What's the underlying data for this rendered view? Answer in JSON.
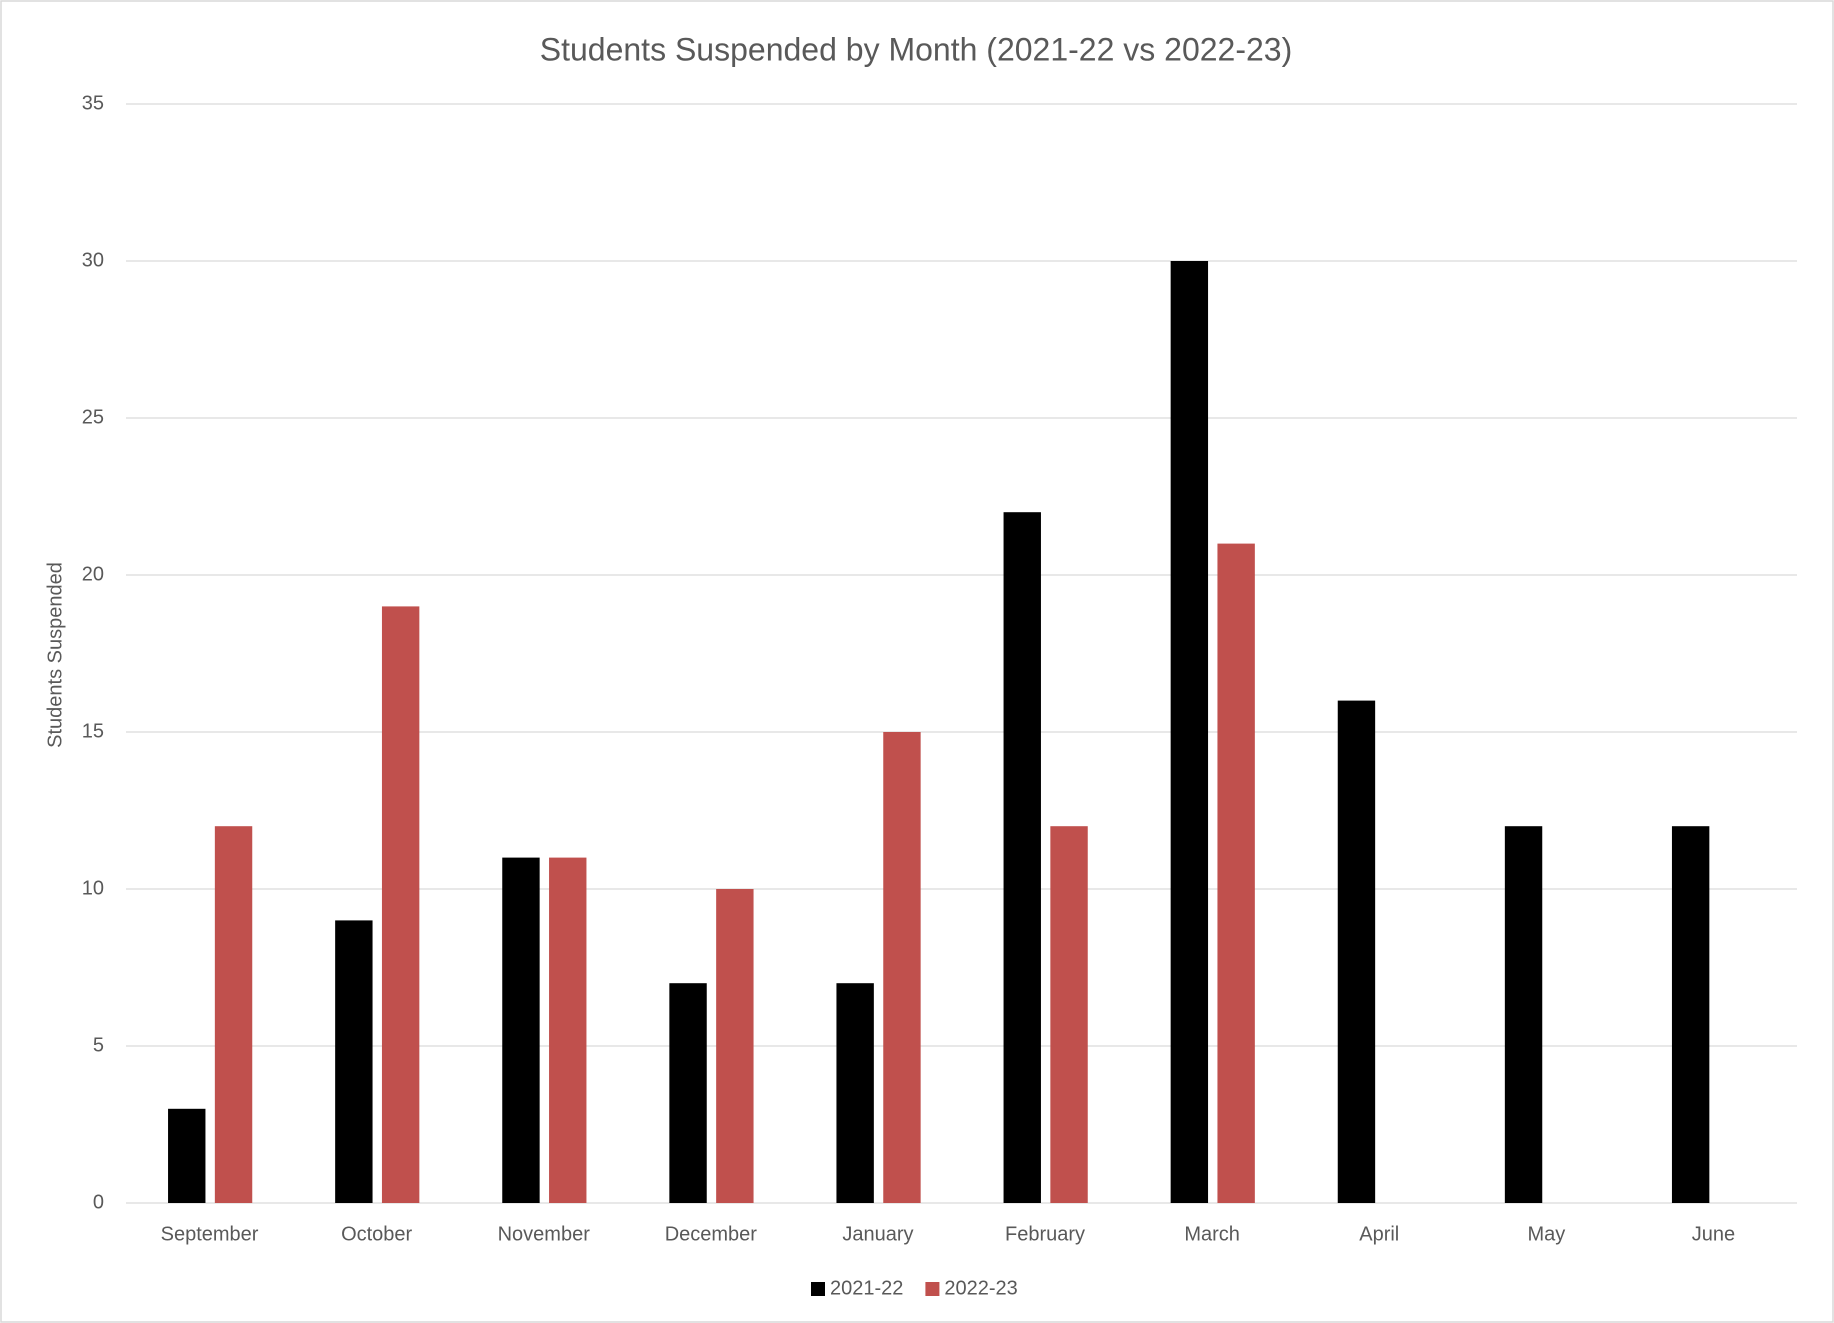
{
  "chart_data": {
    "type": "bar",
    "title": "Students Suspended by Month (2021-22 vs 2022-23)",
    "y_label": "Students Suspended",
    "categories": [
      "September",
      "October",
      "November",
      "December",
      "January",
      "February",
      "March",
      "April",
      "May",
      "June"
    ],
    "series": [
      {
        "name": "2021-22",
        "color": "#000000",
        "values": [
          3,
          9,
          11,
          7,
          7,
          22,
          30,
          16,
          12,
          12
        ]
      },
      {
        "name": "2022-23",
        "color": "#c0504d",
        "values": [
          12,
          19,
          11,
          10,
          15,
          12,
          21,
          null,
          null,
          null
        ]
      }
    ],
    "ylim": [
      0,
      35
    ],
    "yticks": [
      0,
      5,
      10,
      15,
      20,
      25,
      30,
      35
    ],
    "grid": true,
    "legend": "bottom"
  }
}
